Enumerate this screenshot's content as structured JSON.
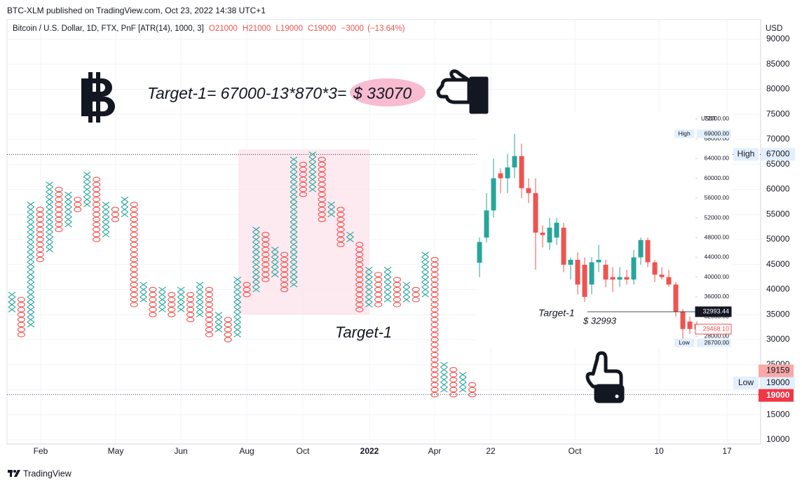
{
  "header": {
    "published": "BTC-XLM published on TradingView.com, Oct 23, 2022 14:38 UTC+1",
    "footer": "TradingView"
  },
  "chart_data": [
    {
      "type": "pnf",
      "title": "Bitcoin / U.S. Dollar, 1D, FTX, PnF [ATR(14), 1000, 3]",
      "ohlc": [
        {
          "value": 21000,
          "label": "O21000"
        },
        {
          "value": 21000,
          "label": "H21000"
        },
        {
          "value": 19000,
          "label": "L19000"
        },
        {
          "value": 19000,
          "label": "C19000"
        }
      ],
      "change": {
        "value": -3000,
        "label": "−3000"
      },
      "change_pct": {
        "value": -13.64,
        "label": "(−13.64%)"
      },
      "y_axis_label": "USD",
      "ylim": [
        10000,
        90000
      ],
      "yticks": [
        10000,
        15000,
        20000,
        25000,
        30000,
        35000,
        40000,
        45000,
        50000,
        55000,
        60000,
        65000,
        70000,
        75000,
        80000,
        85000,
        90000
      ],
      "grid": true,
      "box_size": 1000,
      "x_labels": [
        "Feb",
        "May",
        "Jun",
        "Aug",
        "Oct",
        "2022",
        "Apr",
        "22",
        "Oct",
        "10",
        "17"
      ],
      "colors": {
        "X": "#26a69a",
        "O": "#ef5350"
      },
      "columns": [
        {
          "type": "X",
          "low": 36000,
          "high": 39000
        },
        {
          "type": "O",
          "low": 31000,
          "high": 38000
        },
        {
          "type": "X",
          "low": 33000,
          "high": 57000
        },
        {
          "type": "O",
          "low": 46000,
          "high": 56000
        },
        {
          "type": "X",
          "low": 48000,
          "high": 61000
        },
        {
          "type": "O",
          "low": 52000,
          "high": 60000
        },
        {
          "type": "X",
          "low": 53000,
          "high": 59000
        },
        {
          "type": "O",
          "low": 56000,
          "high": 58000
        },
        {
          "type": "X",
          "low": 57000,
          "high": 63000
        },
        {
          "type": "O",
          "low": 50000,
          "high": 62000
        },
        {
          "type": "X",
          "low": 51000,
          "high": 57000
        },
        {
          "type": "O",
          "low": 54000,
          "high": 56000
        },
        {
          "type": "X",
          "low": 55000,
          "high": 58000
        },
        {
          "type": "O",
          "low": 37000,
          "high": 57000
        },
        {
          "type": "X",
          "low": 38000,
          "high": 41000
        },
        {
          "type": "O",
          "low": 35000,
          "high": 40000
        },
        {
          "type": "X",
          "low": 36000,
          "high": 40000
        },
        {
          "type": "O",
          "low": 35000,
          "high": 39000
        },
        {
          "type": "X",
          "low": 36000,
          "high": 40000
        },
        {
          "type": "O",
          "low": 34000,
          "high": 39000
        },
        {
          "type": "X",
          "low": 35000,
          "high": 41000
        },
        {
          "type": "O",
          "low": 31000,
          "high": 40000
        },
        {
          "type": "X",
          "low": 32000,
          "high": 35000
        },
        {
          "type": "O",
          "low": 30000,
          "high": 34000
        },
        {
          "type": "X",
          "low": 31000,
          "high": 42000
        },
        {
          "type": "O",
          "low": 39000,
          "high": 41000
        },
        {
          "type": "X",
          "low": 40000,
          "high": 52000
        },
        {
          "type": "O",
          "low": 42000,
          "high": 51000
        },
        {
          "type": "X",
          "low": 43000,
          "high": 48000
        },
        {
          "type": "O",
          "low": 40000,
          "high": 47000
        },
        {
          "type": "X",
          "low": 41000,
          "high": 66000
        },
        {
          "type": "O",
          "low": 59000,
          "high": 65000
        },
        {
          "type": "X",
          "low": 60000,
          "high": 67000
        },
        {
          "type": "O",
          "low": 54000,
          "high": 66000
        },
        {
          "type": "X",
          "low": 55000,
          "high": 57000
        },
        {
          "type": "O",
          "low": 49000,
          "high": 56000
        },
        {
          "type": "X",
          "low": 50000,
          "high": 51000
        },
        {
          "type": "O",
          "low": 36000,
          "high": 49000
        },
        {
          "type": "X",
          "low": 37000,
          "high": 44000
        },
        {
          "type": "O",
          "low": 37000,
          "high": 43000
        },
        {
          "type": "X",
          "low": 38000,
          "high": 44000
        },
        {
          "type": "O",
          "low": 37000,
          "high": 42000
        },
        {
          "type": "X",
          "low": 38000,
          "high": 41000
        },
        {
          "type": "O",
          "low": 38000,
          "high": 40000
        },
        {
          "type": "X",
          "low": 39000,
          "high": 47000
        },
        {
          "type": "O",
          "low": 19000,
          "high": 46000
        },
        {
          "type": "X",
          "low": 20000,
          "high": 25000
        },
        {
          "type": "O",
          "low": 19000,
          "high": 24000
        },
        {
          "type": "X",
          "low": 20000,
          "high": 23000
        },
        {
          "type": "O",
          "low": 19000,
          "high": 21000
        }
      ],
      "highlight": {
        "low": 35000,
        "high": 68000,
        "color": "#fce4ec"
      },
      "markers": [
        {
          "label": "High",
          "value": 67000
        },
        {
          "label": "Low",
          "value": 19000
        }
      ],
      "price_tags": [
        {
          "value": 19159,
          "color": "#f7a9a8"
        },
        {
          "value": 19000,
          "color": "#f23645"
        }
      ],
      "annotations": {
        "formula": "Target-1= 67000-13*870*3=",
        "target_price": "$ 33070",
        "target_label": "Target-1"
      }
    },
    {
      "type": "candlestick",
      "y_axis_label": "USDT",
      "ylim": [
        25500,
        72700
      ],
      "yticks": [
        {
          "value": 28000,
          "label": "28000.00"
        },
        {
          "value": 32000,
          "label": "32000.00"
        },
        {
          "value": 36000,
          "label": "36000.00"
        },
        {
          "value": 40000,
          "label": "40000.00"
        },
        {
          "value": 44000,
          "label": "44000.00"
        },
        {
          "value": 48000,
          "label": "48000.00"
        },
        {
          "value": 52000,
          "label": "52000.00"
        },
        {
          "value": 56000,
          "label": "56000.00"
        },
        {
          "value": 60000,
          "label": "60000.00"
        },
        {
          "value": 64000,
          "label": "64000.00"
        },
        {
          "value": 68000,
          "label": "68000.00"
        },
        {
          "value": 72000,
          "label": "72000.00"
        }
      ],
      "up_color": "#26a69a",
      "down_color": "#ef5350",
      "candles": [
        {
          "open": 42900,
          "high": 48000,
          "low": 40000,
          "close": 47100
        },
        {
          "open": 48000,
          "high": 57000,
          "low": 47000,
          "close": 53500
        },
        {
          "open": 53500,
          "high": 64000,
          "low": 52000,
          "close": 60000
        },
        {
          "open": 61000,
          "high": 62000,
          "low": 57000,
          "close": 60000
        },
        {
          "open": 60000,
          "high": 65000,
          "low": 57000,
          "close": 62200
        },
        {
          "open": 62200,
          "high": 69000,
          "low": 60000,
          "close": 64500
        },
        {
          "open": 64500,
          "high": 67000,
          "low": 56000,
          "close": 58000
        },
        {
          "open": 58000,
          "high": 60000,
          "low": 55000,
          "close": 57000
        },
        {
          "open": 57000,
          "high": 60000,
          "low": 41500,
          "close": 49000
        },
        {
          "open": 49000,
          "high": 50500,
          "low": 46000,
          "close": 48500
        },
        {
          "open": 47000,
          "high": 52000,
          "low": 45500,
          "close": 50000
        },
        {
          "open": 48000,
          "high": 52000,
          "low": 46500,
          "close": 51000
        },
        {
          "open": 50000,
          "high": 51000,
          "low": 41000,
          "close": 42500
        },
        {
          "open": 42500,
          "high": 44000,
          "low": 39500,
          "close": 43500
        },
        {
          "open": 43500,
          "high": 45000,
          "low": 36500,
          "close": 38500
        },
        {
          "open": 42500,
          "high": 44000,
          "low": 35000,
          "close": 36000
        },
        {
          "open": 38500,
          "high": 44000,
          "low": 36500,
          "close": 43000
        },
        {
          "open": 43000,
          "high": 46500,
          "low": 41000,
          "close": 43500
        },
        {
          "open": 42500,
          "high": 43500,
          "low": 38000,
          "close": 39500
        },
        {
          "open": 40000,
          "high": 42000,
          "low": 37000,
          "close": 39500
        },
        {
          "open": 39500,
          "high": 42000,
          "low": 38000,
          "close": 40000
        },
        {
          "open": 40000,
          "high": 41500,
          "low": 38500,
          "close": 39500
        },
        {
          "open": 39500,
          "high": 45500,
          "low": 38500,
          "close": 44000
        },
        {
          "open": 44000,
          "high": 48000,
          "low": 42500,
          "close": 47500
        },
        {
          "open": 47500,
          "high": 48000,
          "low": 42000,
          "close": 43000
        },
        {
          "open": 43000,
          "high": 43500,
          "low": 39000,
          "close": 40500
        },
        {
          "open": 40500,
          "high": 42000,
          "low": 39500,
          "close": 40000
        },
        {
          "open": 40000,
          "high": 41500,
          "low": 38000,
          "close": 38500
        },
        {
          "open": 38500,
          "high": 39000,
          "low": 32000,
          "close": 33000
        },
        {
          "open": 33000,
          "high": 33500,
          "low": 26700,
          "close": 29500
        },
        {
          "open": 31000,
          "high": 32000,
          "low": 28500,
          "close": 29500
        },
        {
          "open": 30500,
          "high": 31000,
          "low": 29000,
          "close": 29468.1
        }
      ],
      "markers": [
        {
          "label": "High",
          "value": 69000,
          "value_label": "69000.00"
        },
        {
          "label": "Low",
          "value": 26700,
          "value_label": "26700.00"
        }
      ],
      "price_tags": [
        {
          "value": 32993.44,
          "label": "32993.44",
          "color": "#131722"
        },
        {
          "value": 29468.1,
          "label": "29468.10",
          "color": "#ef5350"
        }
      ],
      "annotations": {
        "target_label": "Target-1",
        "target_price": "$ 32993"
      }
    }
  ]
}
